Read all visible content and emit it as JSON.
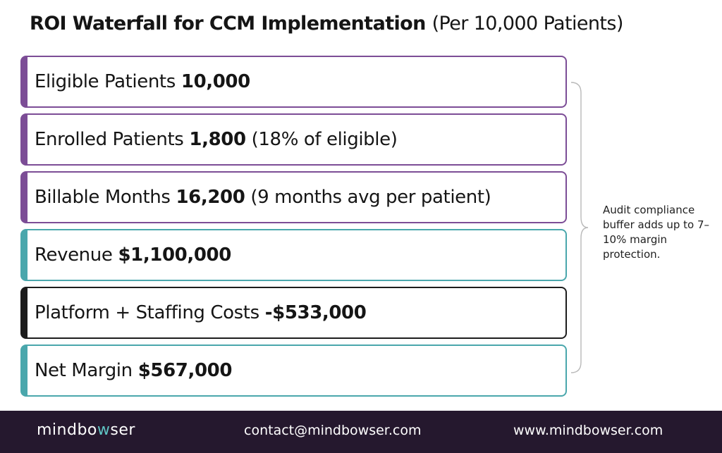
{
  "title": {
    "main": "ROI Waterfall for CCM Implementation",
    "sub": "(Per 10,000 Patients)"
  },
  "steps": [
    {
      "label": "Eligible Patients",
      "value": "10,000",
      "note": "",
      "color": "#7c4d96"
    },
    {
      "label": "Enrolled Patients",
      "value": "1,800",
      "note": "(18% of eligible)",
      "color": "#7c4d96"
    },
    {
      "label": "Billable Months",
      "value": "16,200",
      "note": "(9 months avg per patient)",
      "color": "#7c4d96"
    },
    {
      "label": "Revenue",
      "value": "$1,100,000",
      "note": "",
      "color": "#4aa7ac"
    },
    {
      "label": "Platform + Staffing Costs",
      "value": "-$533,000",
      "note": "",
      "color": "#1c1c1c"
    },
    {
      "label": "Net Margin",
      "value": "$567,000",
      "note": "",
      "color": "#4aa7ac"
    }
  ],
  "annotation": "Audit compliance buffer adds up to 7–10% margin protection.",
  "footer": {
    "logo_pre": "mindbo",
    "logo_accent": "w",
    "logo_post": "ser",
    "email": "contact@mindbowser.com",
    "website": "www.mindbowser.com"
  },
  "colors": {
    "purple": "#7c4d96",
    "teal": "#4aa7ac",
    "black": "#1c1c1c",
    "footer_bg": "#25182e",
    "logo_accent": "#5fc4c4"
  }
}
